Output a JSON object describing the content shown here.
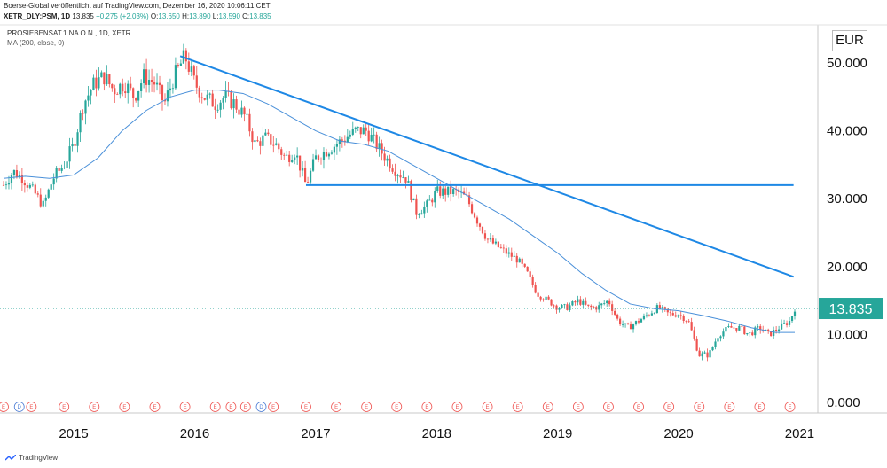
{
  "header": {
    "publisher_line": "Boerse-Global veröffentlicht auf TradingView.com, Dezember 16, 2020 10:06:11 CET",
    "symbol": "XETR_DLY:PSM, 1D",
    "last": "13.835",
    "change": "+0.275 (+2.03%)",
    "open_label": "O:",
    "open": "13.650",
    "high_label": "H:",
    "high": "13.890",
    "low_label": "L:",
    "low": "13.590",
    "close_label": "C:",
    "close": "13.835"
  },
  "legend": {
    "instrument": "PROSIEBENSAT.1 NA O.N., 1D, XETR",
    "indicator": "MA (200, close, 0)"
  },
  "currency": "EUR",
  "price_tag": "13.835",
  "branding": "TradingView",
  "colors": {
    "up": "#26a69a",
    "down": "#ef5350",
    "ma": "#4a90d9",
    "trendline": "#1e88e5",
    "price_tag_bg": "#26a69a",
    "event_marker": "#ef5350"
  },
  "chart_data": {
    "type": "line",
    "subtype": "candlestick",
    "title": "PROSIEBENSAT.1 NA O.N., 1D, XETR",
    "xlabel": "",
    "ylabel": "EUR",
    "ylim": [
      0,
      55
    ],
    "yticks": [
      "50.000",
      "40.000",
      "30.000",
      "20.000",
      "10.000",
      "0.000"
    ],
    "ytick_values": [
      50,
      40,
      30,
      20,
      10,
      0
    ],
    "xticks": [
      "2015",
      "2016",
      "2017",
      "2018",
      "2019",
      "2020",
      "2021"
    ],
    "xtick_values": [
      2015.0,
      2016.0,
      2017.0,
      2018.0,
      2019.0,
      2020.0,
      2021.0
    ],
    "xlim": [
      2014.42,
      2021.15
    ],
    "current_price": 13.835,
    "series": [
      {
        "name": "PROSIEBENSAT.1 NA O.N.",
        "x": [
          2014.42,
          2014.5,
          2014.58,
          2014.67,
          2014.75,
          2014.83,
          2014.92,
          2015.0,
          2015.08,
          2015.17,
          2015.25,
          2015.33,
          2015.42,
          2015.5,
          2015.58,
          2015.67,
          2015.75,
          2015.83,
          2015.92,
          2016.0,
          2016.08,
          2016.17,
          2016.25,
          2016.33,
          2016.42,
          2016.5,
          2016.58,
          2016.67,
          2016.75,
          2016.83,
          2016.92,
          2017.0,
          2017.08,
          2017.17,
          2017.25,
          2017.33,
          2017.42,
          2017.5,
          2017.58,
          2017.67,
          2017.75,
          2017.83,
          2017.92,
          2018.0,
          2018.08,
          2018.17,
          2018.25,
          2018.33,
          2018.42,
          2018.5,
          2018.58,
          2018.67,
          2018.75,
          2018.83,
          2018.92,
          2019.0,
          2019.08,
          2019.17,
          2019.25,
          2019.33,
          2019.42,
          2019.5,
          2019.58,
          2019.67,
          2019.75,
          2019.83,
          2019.92,
          2020.0,
          2020.08,
          2020.17,
          2020.25,
          2020.33,
          2020.42,
          2020.5,
          2020.58,
          2020.67,
          2020.75,
          2020.83,
          2020.92,
          2020.96
        ],
        "y": [
          32,
          34,
          33,
          31,
          29,
          33,
          35,
          38,
          44,
          47,
          48,
          46,
          47,
          45,
          48,
          47,
          44,
          48,
          51,
          47,
          45,
          44,
          45,
          44,
          42,
          38,
          39,
          38,
          36,
          37,
          32,
          36,
          37,
          38,
          39,
          40,
          40,
          38,
          36,
          34,
          33,
          28,
          29,
          31,
          31,
          31,
          30,
          27,
          24,
          23,
          22,
          21,
          19,
          16,
          15,
          14,
          14,
          15,
          14,
          14,
          15,
          12,
          11,
          12,
          13,
          14,
          13,
          13,
          12,
          7,
          7,
          10,
          11,
          11,
          10,
          11,
          10,
          11,
          12,
          13.835
        ]
      },
      {
        "name": "MA (200, close, 0)",
        "x": [
          2014.42,
          2014.6,
          2014.8,
          2015.0,
          2015.2,
          2015.4,
          2015.6,
          2015.8,
          2016.0,
          2016.2,
          2016.4,
          2016.6,
          2016.8,
          2017.0,
          2017.2,
          2017.4,
          2017.6,
          2017.8,
          2018.0,
          2018.2,
          2018.4,
          2018.6,
          2018.8,
          2019.0,
          2019.2,
          2019.4,
          2019.6,
          2019.8,
          2020.0,
          2020.2,
          2020.4,
          2020.6,
          2020.8,
          2020.96
        ],
        "y": [
          33,
          33.3,
          33,
          33.5,
          36,
          40,
          43,
          45,
          46,
          46,
          45.5,
          44,
          42,
          40,
          38.5,
          38,
          37,
          35,
          33,
          31,
          29,
          27,
          24.5,
          22,
          19,
          16.5,
          14.5,
          13.8,
          13.5,
          12.8,
          12,
          11,
          10.3,
          10.3
        ]
      }
    ],
    "annotations": [
      {
        "type": "trendline",
        "from": [
          2015.88,
          51
        ],
        "to": [
          2020.95,
          18.5
        ]
      },
      {
        "type": "horizontal",
        "from": [
          2016.92,
          32
        ],
        "to": [
          2020.95,
          32
        ]
      }
    ],
    "event_markers": [
      {
        "x": 2014.42,
        "label": "E"
      },
      {
        "x": 2014.55,
        "label": "D"
      },
      {
        "x": 2014.65,
        "label": "E"
      },
      {
        "x": 2014.92,
        "label": "E"
      },
      {
        "x": 2015.17,
        "label": "E"
      },
      {
        "x": 2015.42,
        "label": "E"
      },
      {
        "x": 2015.67,
        "label": "E"
      },
      {
        "x": 2015.92,
        "label": "E"
      },
      {
        "x": 2016.17,
        "label": "E"
      },
      {
        "x": 2016.3,
        "label": "E"
      },
      {
        "x": 2016.42,
        "label": "E"
      },
      {
        "x": 2016.55,
        "label": "D"
      },
      {
        "x": 2016.65,
        "label": "E"
      },
      {
        "x": 2016.92,
        "label": "E"
      },
      {
        "x": 2017.17,
        "label": "E"
      },
      {
        "x": 2017.42,
        "label": "E"
      },
      {
        "x": 2017.67,
        "label": "E"
      },
      {
        "x": 2017.92,
        "label": "E"
      },
      {
        "x": 2018.17,
        "label": "E"
      },
      {
        "x": 2018.42,
        "label": "E"
      },
      {
        "x": 2018.67,
        "label": "E"
      },
      {
        "x": 2018.92,
        "label": "E"
      },
      {
        "x": 2019.17,
        "label": "E"
      },
      {
        "x": 2019.42,
        "label": "E"
      },
      {
        "x": 2019.67,
        "label": "E"
      },
      {
        "x": 2019.92,
        "label": "E"
      },
      {
        "x": 2020.17,
        "label": "E"
      },
      {
        "x": 2020.42,
        "label": "E"
      },
      {
        "x": 2020.67,
        "label": "E"
      },
      {
        "x": 2020.92,
        "label": "E"
      }
    ],
    "grid": false,
    "legend": "top-left"
  }
}
